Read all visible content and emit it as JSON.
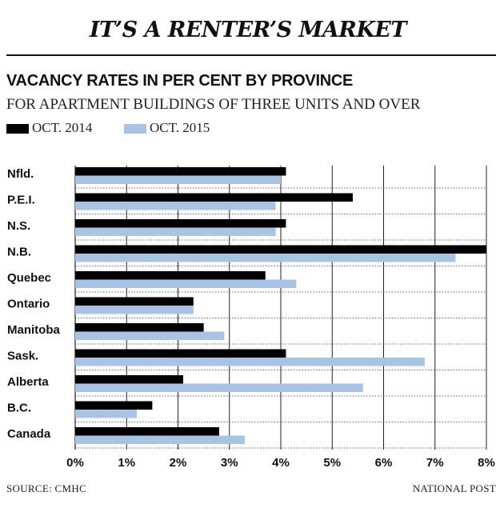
{
  "header": {
    "kicker": "IT’S A RENTER’S MARKET",
    "title": "VACANCY RATES IN PER CENT BY PROVINCE",
    "subtitle": "FOR APARTMENT BUILDINGS OF THREE UNITS AND OVER"
  },
  "legend": [
    {
      "label": "OCT. 2014",
      "color": "#000000"
    },
    {
      "label": "OCT. 2015",
      "color": "#a7c4e5"
    }
  ],
  "footer": {
    "source": "SOURCE: CMHC",
    "credit": "NATIONAL POST"
  },
  "chart_data": {
    "type": "bar",
    "orientation": "horizontal",
    "title": "VACANCY RATES IN PER CENT BY PROVINCE",
    "subtitle": "FOR APARTMENT BUILDINGS OF THREE UNITS AND OVER",
    "categories": [
      "Nfld.",
      "P.E.I.",
      "N.S.",
      "N.B.",
      "Quebec",
      "Ontario",
      "Manitoba",
      "Sask.",
      "Alberta",
      "B.C.",
      "Canada"
    ],
    "series": [
      {
        "name": "OCT. 2014",
        "color": "#000000",
        "values": [
          4.1,
          5.4,
          4.1,
          8.0,
          3.7,
          2.3,
          2.5,
          4.1,
          2.1,
          1.5,
          2.8
        ]
      },
      {
        "name": "OCT. 2015",
        "color": "#a7c4e5",
        "values": [
          4.0,
          3.9,
          3.9,
          7.4,
          4.3,
          2.3,
          2.9,
          6.8,
          5.6,
          1.2,
          3.3
        ]
      }
    ],
    "xlim": [
      0,
      8
    ],
    "x_ticks": [
      "0%",
      "1%",
      "2%",
      "3%",
      "4%",
      "5%",
      "6%",
      "7%",
      "8%"
    ],
    "grid": true,
    "legend_position": "top-left"
  }
}
